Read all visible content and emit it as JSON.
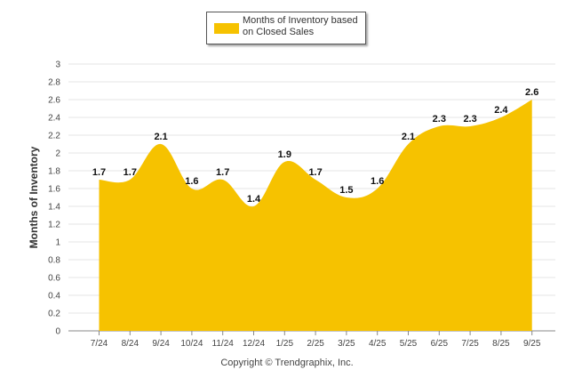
{
  "legend": {
    "label_line1": "Months of Inventory based",
    "label_line2": "on Closed Sales"
  },
  "footer": {
    "copyright": "Copyright © Trendgraphix, Inc."
  },
  "colors": {
    "fill": "#f6c200",
    "grid": "#e6e6e6",
    "axis": "#888888",
    "text": "#333333"
  },
  "chart_data": {
    "type": "area",
    "title": "",
    "xlabel": "",
    "ylabel": "Months of Inventory",
    "ylim": [
      0,
      3
    ],
    "yticks": [
      "0",
      "0.2",
      "0.4",
      "0.6",
      "0.8",
      "1",
      "1.2",
      "1.4",
      "1.6",
      "1.8",
      "2",
      "2.2",
      "2.4",
      "2.6",
      "2.8",
      "3"
    ],
    "categories": [
      "7/24",
      "8/24",
      "9/24",
      "10/24",
      "11/24",
      "12/24",
      "1/25",
      "2/25",
      "3/25",
      "4/25",
      "5/25",
      "6/25",
      "7/25",
      "8/25",
      "9/25"
    ],
    "series": [
      {
        "name": "Months of Inventory based on Closed Sales",
        "values": [
          1.7,
          1.7,
          2.1,
          1.6,
          1.7,
          1.4,
          1.9,
          1.7,
          1.5,
          1.6,
          2.1,
          2.3,
          2.3,
          2.4,
          2.6
        ],
        "labels": [
          "1.7",
          "1.7",
          "2.1",
          "1.6",
          "1.7",
          "1.4",
          "1.9",
          "1.7",
          "1.5",
          "1.6",
          "2.1",
          "2.3",
          "2.3",
          "2.4",
          "2.6"
        ]
      }
    ]
  }
}
